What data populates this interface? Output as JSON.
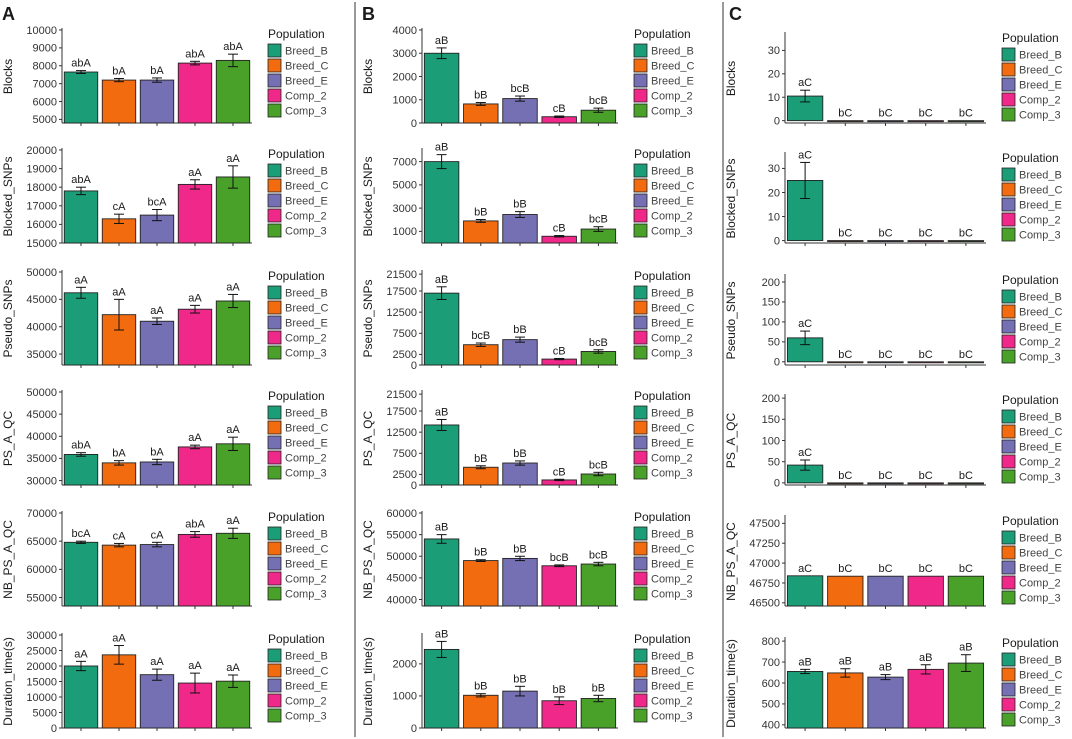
{
  "colors": {
    "Breed_B": "#1b9e77",
    "Breed_C": "#f26b0f",
    "Breed_E": "#7570b3",
    "Comp_2": "#f0288a",
    "Comp_3": "#4aa12a",
    "axis": "#333333",
    "divider": "#333333"
  },
  "legend": {
    "title": "Population",
    "entries": [
      "Breed_B",
      "Breed_C",
      "Breed_E",
      "Comp_2",
      "Comp_3"
    ]
  },
  "panels": [
    {
      "label": "A"
    },
    {
      "label": "B"
    },
    {
      "label": "C"
    }
  ],
  "chart_data": [
    {
      "type": "bar",
      "panel": "A",
      "ylabel": "Blocks",
      "categories": [
        "Breed_B",
        "Breed_C",
        "Breed_E",
        "Comp_2",
        "Comp_3"
      ],
      "values": [
        7650,
        7200,
        7200,
        8150,
        8300
      ],
      "errors": [
        80,
        90,
        120,
        100,
        350
      ],
      "labels": [
        "abA",
        "bA",
        "bA",
        "abA",
        "abA"
      ],
      "ylim": [
        4800,
        10000
      ],
      "yticks": [
        5000,
        6000,
        7000,
        8000,
        9000,
        10000
      ],
      "tick_labels": [
        "5000",
        "6000",
        "7000",
        "8000",
        "9000",
        "10000"
      ]
    },
    {
      "type": "bar",
      "panel": "A",
      "ylabel": "Blocked_SNPs",
      "categories": [
        "Breed_B",
        "Breed_C",
        "Breed_E",
        "Comp_2",
        "Comp_3"
      ],
      "values": [
        17800,
        16300,
        16500,
        18150,
        18550
      ],
      "errors": [
        200,
        250,
        300,
        250,
        600
      ],
      "labels": [
        "abA",
        "cA",
        "bcA",
        "aA",
        "aA"
      ],
      "ylim": [
        15000,
        20000
      ],
      "yticks": [
        15000,
        16000,
        17000,
        18000,
        19000,
        20000
      ],
      "tick_labels": [
        "15000",
        "16000",
        "17000",
        "18000",
        "19000",
        "20000"
      ]
    },
    {
      "type": "bar",
      "panel": "A",
      "ylabel": "Pseudo_SNPs",
      "categories": [
        "Breed_B",
        "Breed_C",
        "Breed_E",
        "Comp_2",
        "Comp_3"
      ],
      "values": [
        46200,
        42200,
        41000,
        43200,
        44700
      ],
      "errors": [
        1000,
        2800,
        600,
        700,
        1200
      ],
      "labels": [
        "aA",
        "aA",
        "aA",
        "aA",
        "aA"
      ],
      "ylim": [
        33000,
        50000
      ],
      "yticks": [
        35000,
        40000,
        45000,
        50000
      ],
      "tick_labels": [
        "35000",
        "40000",
        "45000",
        "50000"
      ]
    },
    {
      "type": "bar",
      "panel": "A",
      "ylabel": "PS_A_QC",
      "categories": [
        "Breed_B",
        "Breed_C",
        "Breed_E",
        "Comp_2",
        "Comp_3"
      ],
      "values": [
        35900,
        34000,
        34200,
        37600,
        38300
      ],
      "errors": [
        400,
        500,
        600,
        400,
        1500
      ],
      "labels": [
        "abA",
        "bA",
        "bA",
        "aA",
        "aA"
      ],
      "ylim": [
        29000,
        50000
      ],
      "yticks": [
        30000,
        35000,
        40000,
        45000,
        50000
      ],
      "tick_labels": [
        "30000",
        "35000",
        "40000",
        "45000",
        "50000"
      ]
    },
    {
      "type": "bar",
      "panel": "A",
      "ylabel": "NB_PS_A_QC",
      "categories": [
        "Breed_B",
        "Breed_C",
        "Breed_E",
        "Comp_2",
        "Comp_3"
      ],
      "values": [
        64800,
        64300,
        64400,
        66200,
        66400
      ],
      "errors": [
        200,
        300,
        400,
        500,
        900
      ],
      "labels": [
        "bcA",
        "cA",
        "cA",
        "abA",
        "aA"
      ],
      "ylim": [
        53500,
        70000
      ],
      "yticks": [
        55000,
        60000,
        65000,
        70000
      ],
      "tick_labels": [
        "55000",
        "60000",
        "65000",
        "70000"
      ]
    },
    {
      "type": "bar",
      "panel": "A",
      "ylabel": "Duration_time(s)",
      "categories": [
        "Breed_B",
        "Breed_C",
        "Breed_E",
        "Comp_2",
        "Comp_3"
      ],
      "values": [
        20000,
        23600,
        17200,
        14500,
        15100
      ],
      "errors": [
        1500,
        3000,
        1800,
        3200,
        2000
      ],
      "labels": [
        "aA",
        "aA",
        "aA",
        "aA",
        "aA"
      ],
      "ylim": [
        0,
        30000
      ],
      "yticks": [
        0,
        5000,
        10000,
        15000,
        20000,
        25000,
        30000
      ],
      "tick_labels": [
        "0",
        "5000",
        "10000",
        "15000",
        "20000",
        "25000",
        "30000"
      ]
    },
    {
      "type": "bar",
      "panel": "B",
      "ylabel": "Blocks",
      "categories": [
        "Breed_B",
        "Breed_C",
        "Breed_E",
        "Comp_2",
        "Comp_3"
      ],
      "values": [
        3000,
        820,
        1050,
        270,
        550
      ],
      "errors": [
        230,
        60,
        110,
        30,
        90
      ],
      "labels": [
        "aB",
        "bB",
        "bcB",
        "cB",
        "bcB"
      ],
      "ylim": [
        0,
        4000
      ],
      "yticks": [
        0,
        1000,
        2000,
        3000,
        4000
      ],
      "tick_labels": [
        "0",
        "1000",
        "2000",
        "3000",
        "4000"
      ]
    },
    {
      "type": "bar",
      "panel": "B",
      "ylabel": "Blocked_SNPs",
      "categories": [
        "Breed_B",
        "Breed_C",
        "Breed_E",
        "Comp_2",
        "Comp_3"
      ],
      "values": [
        7000,
        1900,
        2450,
        580,
        1200
      ],
      "errors": [
        600,
        120,
        250,
        60,
        200
      ],
      "labels": [
        "aB",
        "bB",
        "bB",
        "cB",
        "bcB"
      ],
      "ylim": [
        0,
        8000
      ],
      "yticks": [
        1000,
        3000,
        5000,
        7000
      ],
      "tick_labels": [
        "1000",
        "3000",
        "5000",
        "7000"
      ]
    },
    {
      "type": "bar",
      "panel": "B",
      "ylabel": "Pseudo_SNPs",
      "categories": [
        "Breed_B",
        "Breed_C",
        "Breed_E",
        "Comp_2",
        "Comp_3"
      ],
      "values": [
        17000,
        4800,
        6000,
        1400,
        3200
      ],
      "errors": [
        1500,
        400,
        600,
        150,
        400
      ],
      "labels": [
        "aB",
        "bcB",
        "bB",
        "cB",
        "bcB"
      ],
      "ylim": [
        0,
        22000
      ],
      "yticks": [
        0,
        2500,
        7500,
        12500,
        17500,
        21500
      ],
      "tick_labels": [
        "0",
        "2500",
        "7500",
        "12500",
        "17500",
        "21500"
      ]
    },
    {
      "type": "bar",
      "panel": "B",
      "ylabel": "PS_A_QC",
      "categories": [
        "Breed_B",
        "Breed_C",
        "Breed_E",
        "Comp_2",
        "Comp_3"
      ],
      "values": [
        14200,
        4200,
        5200,
        1200,
        2600
      ],
      "errors": [
        1300,
        350,
        500,
        150,
        400
      ],
      "labels": [
        "aB",
        "bB",
        "bB",
        "cB",
        "bcB"
      ],
      "ylim": [
        0,
        22000
      ],
      "yticks": [
        0,
        2500,
        7500,
        12500,
        17500,
        21500
      ],
      "tick_labels": [
        "0",
        "2500",
        "7500",
        "12500",
        "17500",
        "21500"
      ]
    },
    {
      "type": "bar",
      "panel": "B",
      "ylabel": "NB_PS_A_QC",
      "categories": [
        "Breed_B",
        "Breed_C",
        "Breed_E",
        "Comp_2",
        "Comp_3"
      ],
      "values": [
        54000,
        49000,
        49500,
        47800,
        48200
      ],
      "errors": [
        1000,
        200,
        500,
        200,
        400
      ],
      "labels": [
        "aB",
        "bB",
        "bB",
        "bcB",
        "bcB"
      ],
      "ylim": [
        38500,
        60000
      ],
      "yticks": [
        40000,
        45000,
        50000,
        55000,
        60000
      ],
      "tick_labels": [
        "40000",
        "45000",
        "50000",
        "55000",
        "60000"
      ]
    },
    {
      "type": "bar",
      "panel": "B",
      "ylabel": "Duration_time(s)",
      "categories": [
        "Breed_B",
        "Breed_C",
        "Breed_E",
        "Comp_2",
        "Comp_3"
      ],
      "values": [
        2450,
        1020,
        1150,
        850,
        920
      ],
      "errors": [
        250,
        50,
        150,
        120,
        100
      ],
      "labels": [
        "aB",
        "bB",
        "bB",
        "bB",
        "bB"
      ],
      "ylim": [
        0,
        2900
      ],
      "yticks": [
        0,
        1000,
        2000
      ],
      "tick_labels": [
        "0",
        "1000",
        "2000"
      ]
    },
    {
      "type": "bar",
      "panel": "C",
      "ylabel": "Blocks",
      "categories": [
        "Breed_B",
        "Breed_C",
        "Breed_E",
        "Comp_2",
        "Comp_3"
      ],
      "values": [
        10.5,
        0,
        0,
        0,
        0
      ],
      "errors": [
        2.5,
        0,
        0,
        0,
        0
      ],
      "labels": [
        "aC",
        "bC",
        "bC",
        "bC",
        "bC"
      ],
      "ylim": [
        -1,
        37
      ],
      "yticks": [
        0,
        10,
        20,
        30
      ],
      "tick_labels": [
        "0",
        "10",
        "20",
        "30"
      ]
    },
    {
      "type": "bar",
      "panel": "C",
      "ylabel": "Blocked_SNPs",
      "categories": [
        "Breed_B",
        "Breed_C",
        "Breed_E",
        "Comp_2",
        "Comp_3"
      ],
      "values": [
        25,
        0,
        0,
        0,
        0
      ],
      "errors": [
        7.5,
        0,
        0,
        0,
        0
      ],
      "labels": [
        "aC",
        "bC",
        "bC",
        "bC",
        "bC"
      ],
      "ylim": [
        -1,
        36
      ],
      "yticks": [
        0,
        10,
        20,
        30
      ],
      "tick_labels": [
        "0",
        "10",
        "20",
        "30"
      ]
    },
    {
      "type": "bar",
      "panel": "C",
      "ylabel": "Pseudo_SNPs",
      "categories": [
        "Breed_B",
        "Breed_C",
        "Breed_E",
        "Comp_2",
        "Comp_3"
      ],
      "values": [
        60,
        0,
        0,
        0,
        0
      ],
      "errors": [
        17,
        0,
        0,
        0,
        0
      ],
      "labels": [
        "aC",
        "bC",
        "bC",
        "bC",
        "bC"
      ],
      "ylim": [
        -8,
        215
      ],
      "yticks": [
        0,
        50,
        100,
        150,
        200
      ],
      "tick_labels": [
        "0",
        "50",
        "100",
        "150",
        "200"
      ]
    },
    {
      "type": "bar",
      "panel": "C",
      "ylabel": "PS_A_QC",
      "categories": [
        "Breed_B",
        "Breed_C",
        "Breed_E",
        "Comp_2",
        "Comp_3"
      ],
      "values": [
        42,
        0,
        0,
        0,
        0
      ],
      "errors": [
        12,
        0,
        0,
        0,
        0
      ],
      "labels": [
        "aC",
        "bC",
        "bC",
        "bC",
        "bC"
      ],
      "ylim": [
        -5,
        205
      ],
      "yticks": [
        0,
        50,
        100,
        150,
        200
      ],
      "tick_labels": [
        "0",
        "50",
        "100",
        "150",
        "200"
      ]
    },
    {
      "type": "bar",
      "panel": "C",
      "ylabel": "NB_PS_A_QC",
      "categories": [
        "Breed_B",
        "Breed_C",
        "Breed_E",
        "Comp_2",
        "Comp_3"
      ],
      "values": [
        46840,
        46835,
        46835,
        46835,
        46835
      ],
      "errors": [
        0,
        0,
        0,
        0,
        0
      ],
      "labels": [
        "aC",
        "bC",
        "bC",
        "bC",
        "bC"
      ],
      "ylim": [
        46460,
        47580
      ],
      "yticks": [
        46500,
        46750,
        47000,
        47250,
        47500
      ],
      "tick_labels": [
        "46500",
        "46750",
        "47000",
        "47250",
        "47500"
      ]
    },
    {
      "type": "bar",
      "panel": "C",
      "ylabel": "Duration_time(s)",
      "categories": [
        "Breed_B",
        "Breed_C",
        "Breed_E",
        "Comp_2",
        "Comp_3"
      ],
      "values": [
        655,
        648,
        628,
        665,
        695
      ],
      "errors": [
        10,
        20,
        12,
        22,
        40
      ],
      "labels": [
        "aB",
        "aB",
        "aB",
        "aB",
        "aB"
      ],
      "ylim": [
        385,
        810
      ],
      "yticks": [
        400,
        500,
        600,
        700,
        800
      ],
      "tick_labels": [
        "400",
        "500",
        "600",
        "700",
        "800"
      ]
    }
  ]
}
